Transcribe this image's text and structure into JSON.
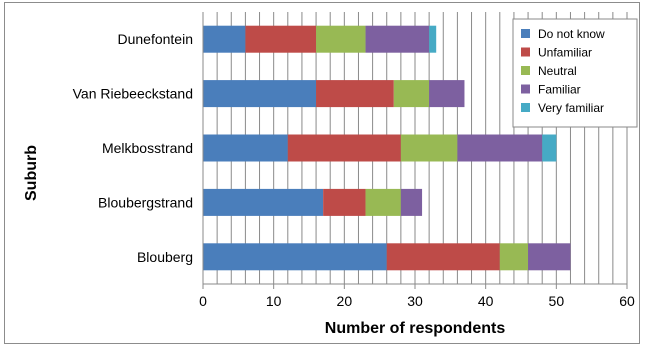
{
  "chart_data": {
    "type": "bar",
    "orientation": "horizontal",
    "stacked": true,
    "title": "",
    "xlabel": "Number of respondents",
    "ylabel": "Suburb",
    "xlim": [
      0,
      60
    ],
    "xticks": [
      0,
      10,
      20,
      30,
      40,
      50,
      60
    ],
    "grid": "vertical, every 2 units",
    "legend_position": "top-right",
    "categories": [
      "Dunefontein",
      "Van Riebeeckstand",
      "Melkbosstrand",
      "Bloubergstrand",
      "Blouberg"
    ],
    "series": [
      {
        "name": "Do not know",
        "color": "#4a7ebb",
        "values": [
          6,
          16,
          12,
          17,
          26
        ]
      },
      {
        "name": "Unfamiliar",
        "color": "#be4b48",
        "values": [
          10,
          11,
          16,
          6,
          16
        ]
      },
      {
        "name": "Neutral",
        "color": "#98b954",
        "values": [
          7,
          5,
          8,
          5,
          4
        ]
      },
      {
        "name": "Familiar",
        "color": "#7d60a0",
        "values": [
          9,
          5,
          12,
          3,
          6
        ]
      },
      {
        "name": "Very familiar",
        "color": "#46aac5",
        "values": [
          1,
          0,
          2,
          0,
          0
        ]
      }
    ]
  }
}
